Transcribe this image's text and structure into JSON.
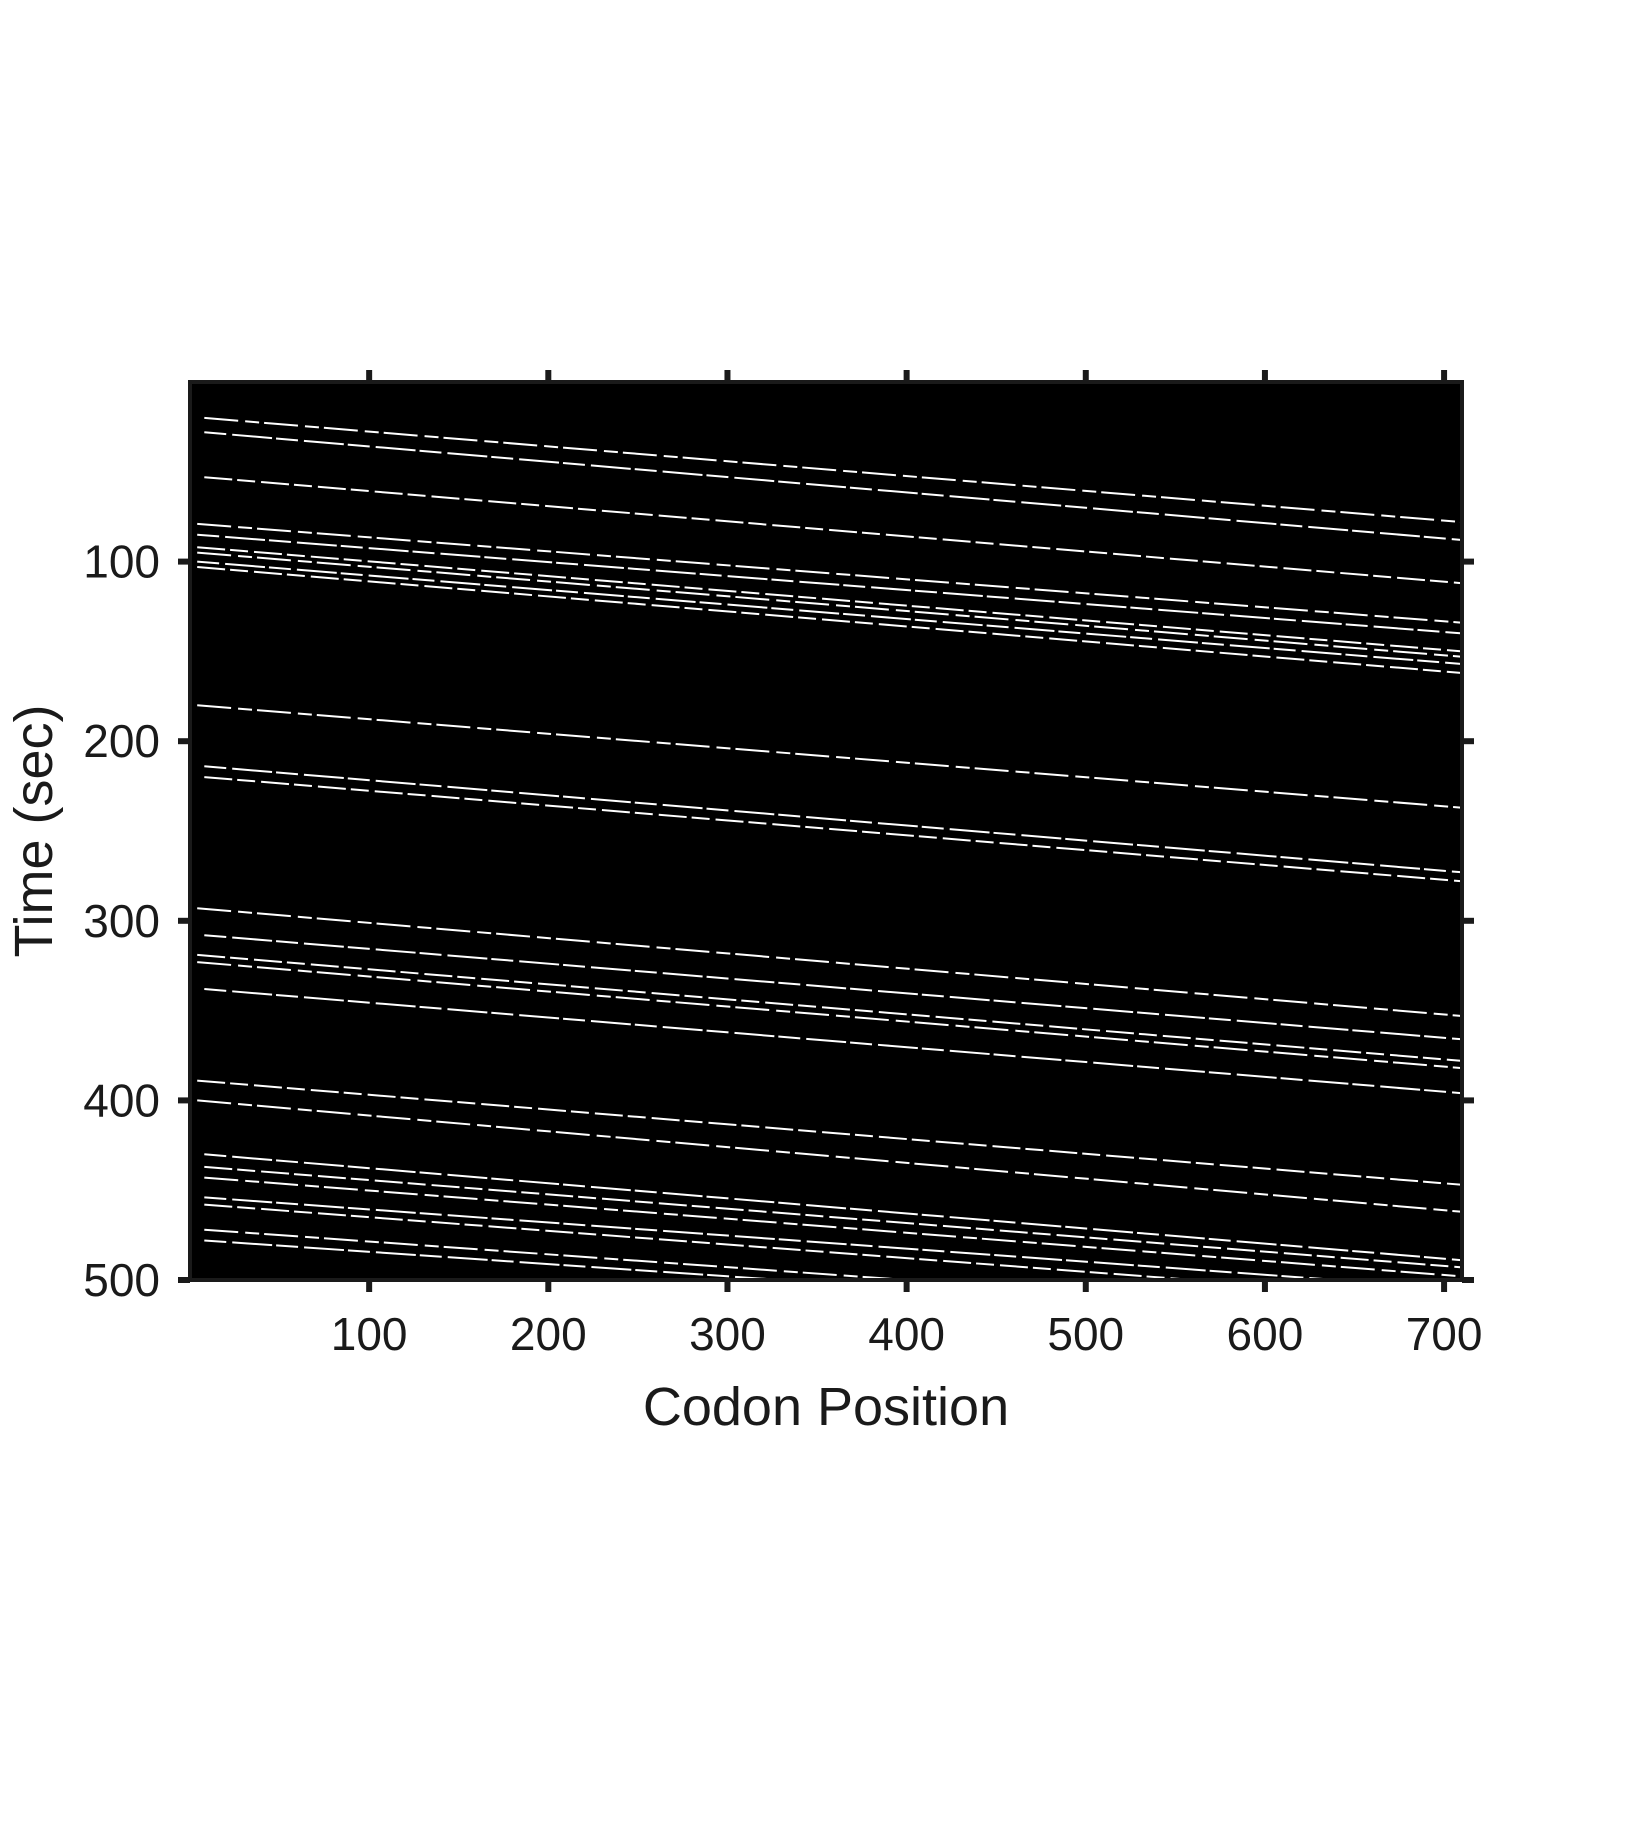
{
  "chart_data": {
    "type": "kymograph",
    "xlabel": "Codon Position",
    "ylabel": "Time (sec)",
    "xlim": [
      0,
      710
    ],
    "ylim": [
      0,
      500
    ],
    "y_reversed": true,
    "xticks": [
      100,
      200,
      300,
      400,
      500,
      600,
      700
    ],
    "yticks": [
      100,
      200,
      300,
      400,
      500
    ],
    "background": "#000000",
    "trace_color": "#ffffff",
    "ribosome_traces": [
      {
        "x": [
          8,
          710
        ],
        "y": [
          20,
          78
        ]
      },
      {
        "x": [
          8,
          710
        ],
        "y": [
          28,
          88
        ]
      },
      {
        "x": [
          8,
          710
        ],
        "y": [
          53,
          112
        ]
      },
      {
        "x": [
          4,
          710
        ],
        "y": [
          79,
          134
        ]
      },
      {
        "x": [
          4,
          710
        ],
        "y": [
          85,
          140
        ]
      },
      {
        "x": [
          4,
          710
        ],
        "y": [
          92,
          150
        ]
      },
      {
        "x": [
          4,
          710
        ],
        "y": [
          95,
          153
        ]
      },
      {
        "x": [
          4,
          710
        ],
        "y": [
          100,
          157
        ]
      },
      {
        "x": [
          4,
          710
        ],
        "y": [
          103,
          162
        ]
      },
      {
        "x": [
          4,
          710
        ],
        "y": [
          180,
          237
        ]
      },
      {
        "x": [
          8,
          710
        ],
        "y": [
          214,
          273
        ]
      },
      {
        "x": [
          8,
          710
        ],
        "y": [
          220,
          278
        ]
      },
      {
        "x": [
          4,
          710
        ],
        "y": [
          293,
          353
        ]
      },
      {
        "x": [
          8,
          710
        ],
        "y": [
          308,
          366
        ]
      },
      {
        "x": [
          4,
          710
        ],
        "y": [
          319,
          378
        ]
      },
      {
        "x": [
          4,
          710
        ],
        "y": [
          323,
          382
        ]
      },
      {
        "x": [
          8,
          710
        ],
        "y": [
          338,
          396
        ]
      },
      {
        "x": [
          4,
          710
        ],
        "y": [
          389,
          447
        ]
      },
      {
        "x": [
          4,
          710
        ],
        "y": [
          400,
          462
        ]
      },
      {
        "x": [
          8,
          710
        ],
        "y": [
          430,
          489
        ]
      },
      {
        "x": [
          8,
          710
        ],
        "y": [
          437,
          493
        ]
      },
      {
        "x": [
          8,
          710
        ],
        "y": [
          443,
          498
        ]
      },
      {
        "x": [
          8,
          640
        ],
        "y": [
          454,
          500
        ]
      },
      {
        "x": [
          8,
          560
        ],
        "y": [
          458,
          500
        ]
      },
      {
        "x": [
          8,
          400
        ],
        "y": [
          472,
          500
        ]
      },
      {
        "x": [
          8,
          330
        ],
        "y": [
          478,
          500
        ]
      }
    ]
  }
}
